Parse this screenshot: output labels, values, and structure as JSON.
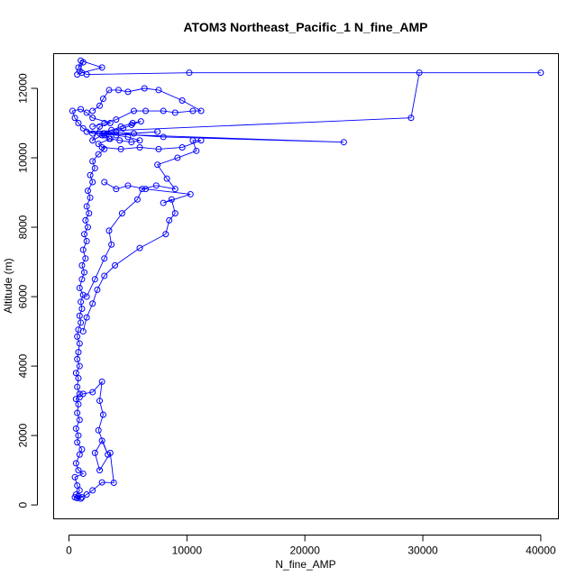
{
  "chart_data": {
    "type": "line",
    "title": "ATOM3 Northeast_Pacific_1 N_fine_AMP",
    "xlabel": "N_fine_AMP",
    "ylabel": "Altitude (m)",
    "xlim": [
      -1300,
      41500
    ],
    "ylim": [
      -400,
      13000
    ],
    "xticks": [
      0,
      10000,
      20000,
      30000,
      40000
    ],
    "yticks": [
      0,
      2000,
      4000,
      6000,
      8000,
      10000,
      12000
    ],
    "grid": false,
    "series_color": "#0000ff",
    "series": [
      {
        "name": "",
        "points": [
          [
            1000,
            180
          ],
          [
            700,
            200
          ],
          [
            500,
            220
          ],
          [
            800,
            250
          ],
          [
            600,
            300
          ],
          [
            900,
            420
          ],
          [
            700,
            560
          ],
          [
            500,
            800
          ],
          [
            1200,
            900
          ],
          [
            800,
            1000
          ],
          [
            600,
            1200
          ],
          [
            900,
            1450
          ],
          [
            1100,
            1600
          ],
          [
            700,
            1800
          ],
          [
            800,
            2000
          ],
          [
            600,
            2200
          ],
          [
            900,
            2450
          ],
          [
            700,
            2650
          ],
          [
            800,
            2900
          ],
          [
            600,
            3050
          ],
          [
            900,
            3200
          ],
          [
            700,
            3400
          ],
          [
            800,
            3650
          ],
          [
            600,
            3800
          ],
          [
            900,
            4000
          ],
          [
            700,
            4200
          ],
          [
            800,
            4400
          ],
          [
            900,
            4650
          ],
          [
            700,
            4850
          ],
          [
            800,
            5050
          ],
          [
            1000,
            5250
          ],
          [
            900,
            5450
          ],
          [
            1100,
            5650
          ],
          [
            1000,
            5850
          ],
          [
            1200,
            6050
          ],
          [
            900,
            6250
          ],
          [
            1100,
            6500
          ],
          [
            1300,
            6700
          ],
          [
            1100,
            6900
          ],
          [
            1400,
            7100
          ],
          [
            1200,
            7350
          ],
          [
            1500,
            7600
          ],
          [
            1300,
            7800
          ],
          [
            1600,
            8000
          ],
          [
            1400,
            8200
          ],
          [
            1700,
            8400
          ],
          [
            1500,
            8600
          ],
          [
            1800,
            8850
          ],
          [
            1600,
            9050
          ],
          [
            2000,
            9300
          ],
          [
            1800,
            9500
          ],
          [
            2200,
            9700
          ],
          [
            2000,
            9900
          ],
          [
            2500,
            10100
          ],
          [
            3000,
            10250
          ],
          [
            2500,
            10400
          ],
          [
            3500,
            10550
          ],
          [
            3000,
            10650
          ],
          [
            2600,
            10700
          ],
          [
            4000,
            10750
          ],
          [
            5500,
            10700
          ],
          [
            7500,
            10750
          ],
          [
            2800,
            10650
          ],
          [
            2000,
            10500
          ],
          [
            2600,
            10900
          ],
          [
            3500,
            11000
          ],
          [
            2000,
            11150
          ],
          [
            1500,
            11300
          ],
          [
            1000,
            11400
          ],
          [
            300,
            11350
          ],
          [
            500,
            11150
          ],
          [
            800,
            11000
          ],
          [
            1200,
            10850
          ],
          [
            2000,
            10700
          ],
          [
            23300,
            10450
          ],
          [
            8000,
            10600
          ],
          [
            1500,
            10750
          ],
          [
            29000,
            11150
          ],
          [
            29700,
            12450
          ],
          [
            40000,
            12450
          ],
          [
            10200,
            12450
          ],
          [
            1500,
            12400
          ],
          [
            900,
            12500
          ],
          [
            1200,
            12750
          ],
          [
            800,
            12600
          ],
          [
            1000,
            12800
          ],
          [
            2800,
            12600
          ],
          [
            1100,
            12450
          ],
          [
            700,
            12400
          ]
        ]
      },
      {
        "name": "",
        "points": [
          [
            700,
            200
          ],
          [
            1100,
            220
          ],
          [
            1500,
            300
          ],
          [
            2000,
            420
          ],
          [
            2800,
            650
          ],
          [
            3800,
            640
          ],
          [
            3500,
            1500
          ],
          [
            2600,
            1000
          ],
          [
            2200,
            1500
          ],
          [
            2800,
            1850
          ],
          [
            3300,
            1450
          ],
          [
            2500,
            2150
          ],
          [
            2900,
            2600
          ],
          [
            2600,
            3000
          ],
          [
            2800,
            3550
          ],
          [
            2000,
            3250
          ],
          [
            1200,
            3200
          ],
          [
            900,
            3100
          ]
        ]
      },
      {
        "name": "",
        "points": [
          [
            1200,
            5000
          ],
          [
            1500,
            5400
          ],
          [
            2000,
            5800
          ],
          [
            2400,
            6200
          ],
          [
            3000,
            6600
          ],
          [
            3900,
            6900
          ],
          [
            6000,
            7400
          ],
          [
            8200,
            7800
          ],
          [
            8500,
            8200
          ],
          [
            9000,
            8400
          ],
          [
            8700,
            8800
          ],
          [
            8000,
            8700
          ],
          [
            10300,
            8950
          ],
          [
            6500,
            9100
          ],
          [
            5000,
            9200
          ],
          [
            4000,
            9100
          ],
          [
            3000,
            9300
          ]
        ]
      },
      {
        "name": "",
        "points": [
          [
            1500,
            6000
          ],
          [
            2200,
            6500
          ],
          [
            3000,
            7100
          ],
          [
            3600,
            7500
          ],
          [
            3400,
            7900
          ],
          [
            4500,
            8400
          ],
          [
            5800,
            8800
          ],
          [
            6200,
            9100
          ],
          [
            7400,
            9200
          ],
          [
            9000,
            9100
          ],
          [
            8300,
            9400
          ],
          [
            7500,
            9800
          ],
          [
            9200,
            10000
          ],
          [
            10800,
            10200
          ],
          [
            10500,
            10500
          ],
          [
            11200,
            10500
          ],
          [
            9600,
            10300
          ],
          [
            7600,
            10250
          ],
          [
            6000,
            10300
          ],
          [
            4400,
            10250
          ],
          [
            2800,
            10300
          ]
        ]
      },
      {
        "name": "",
        "points": [
          [
            2000,
            10900
          ],
          [
            3000,
            11000
          ],
          [
            4000,
            11100
          ],
          [
            5500,
            11350
          ],
          [
            6500,
            11350
          ],
          [
            8000,
            11350
          ],
          [
            9000,
            11300
          ],
          [
            10500,
            11350
          ],
          [
            11200,
            11350
          ],
          [
            9600,
            11650
          ],
          [
            7600,
            11950
          ],
          [
            6400,
            12000
          ],
          [
            5000,
            11900
          ],
          [
            4200,
            11950
          ],
          [
            3400,
            11950
          ],
          [
            2900,
            11700
          ],
          [
            2600,
            11500
          ],
          [
            2000,
            11350
          ]
        ]
      },
      {
        "name": "",
        "points": [
          [
            3000,
            10700
          ],
          [
            4400,
            10900
          ],
          [
            5400,
            11000
          ],
          [
            6100,
            11050
          ],
          [
            5300,
            10950
          ],
          [
            4600,
            10850
          ],
          [
            3600,
            10800
          ],
          [
            2900,
            10700
          ],
          [
            4000,
            10650
          ],
          [
            5000,
            10600
          ],
          [
            6000,
            10500
          ],
          [
            5300,
            10450
          ],
          [
            4300,
            10500
          ],
          [
            3400,
            10550
          ]
        ]
      }
    ]
  }
}
